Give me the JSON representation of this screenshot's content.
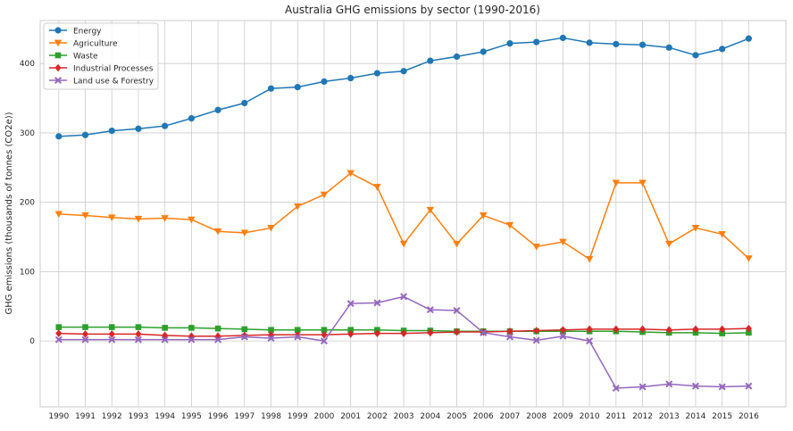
{
  "chart_data": {
    "type": "line",
    "title": "Australia GHG emissions by sector (1990-2016)",
    "xlabel": "",
    "ylabel": "GHG emissions (thousands of tonnes (CO2e))",
    "x": [
      1990,
      1991,
      1992,
      1993,
      1994,
      1995,
      1996,
      1997,
      1998,
      1999,
      2000,
      2001,
      2002,
      2003,
      2004,
      2005,
      2006,
      2007,
      2008,
      2009,
      2010,
      2011,
      2012,
      2013,
      2014,
      2015,
      2016
    ],
    "xlim": [
      1989.3,
      2017.4
    ],
    "ylim": [
      -95,
      462
    ],
    "yticks": [
      0,
      100,
      200,
      300,
      400
    ],
    "grid": true,
    "legend": "top-left",
    "series": [
      {
        "name": "Energy",
        "color": "#1f77b4",
        "marker": "circle",
        "values": [
          295,
          297,
          303,
          306,
          310,
          321,
          333,
          343,
          364,
          366,
          374,
          379,
          386,
          389,
          404,
          410,
          417,
          429,
          431,
          437,
          430,
          428,
          427,
          423,
          412,
          421,
          436
        ]
      },
      {
        "name": "Agriculture",
        "color": "#ff7f0e",
        "marker": "triangle-down",
        "values": [
          183,
          181,
          178,
          176,
          177,
          175,
          158,
          156,
          163,
          194,
          211,
          242,
          222,
          140,
          189,
          140,
          181,
          167,
          136,
          143,
          118,
          228,
          228,
          140,
          163,
          154,
          119
        ]
      },
      {
        "name": "Waste",
        "color": "#2ca02c",
        "marker": "square",
        "values": [
          20,
          20,
          20,
          20,
          19,
          19,
          18,
          17,
          16,
          16,
          16,
          16,
          16,
          15,
          15,
          14,
          14,
          14,
          14,
          14,
          14,
          14,
          13,
          12,
          12,
          11,
          12
        ]
      },
      {
        "name": "Industrial Processes",
        "color": "#d62728",
        "marker": "diamond",
        "values": [
          11,
          10,
          10,
          10,
          8,
          7,
          7,
          8,
          9,
          9,
          9,
          10,
          11,
          11,
          12,
          13,
          13,
          14,
          15,
          16,
          17,
          17,
          17,
          16,
          17,
          17,
          18
        ]
      },
      {
        "name": "Land use & Forestry",
        "color": "#9467bd",
        "marker": "x-filled",
        "values": [
          2,
          2,
          2,
          2,
          2,
          2,
          2,
          6,
          4,
          6,
          0,
          54,
          55,
          64,
          45,
          44,
          12,
          6,
          1,
          7,
          0,
          -68,
          -66,
          -62,
          -65,
          -66,
          -65
        ]
      }
    ]
  }
}
